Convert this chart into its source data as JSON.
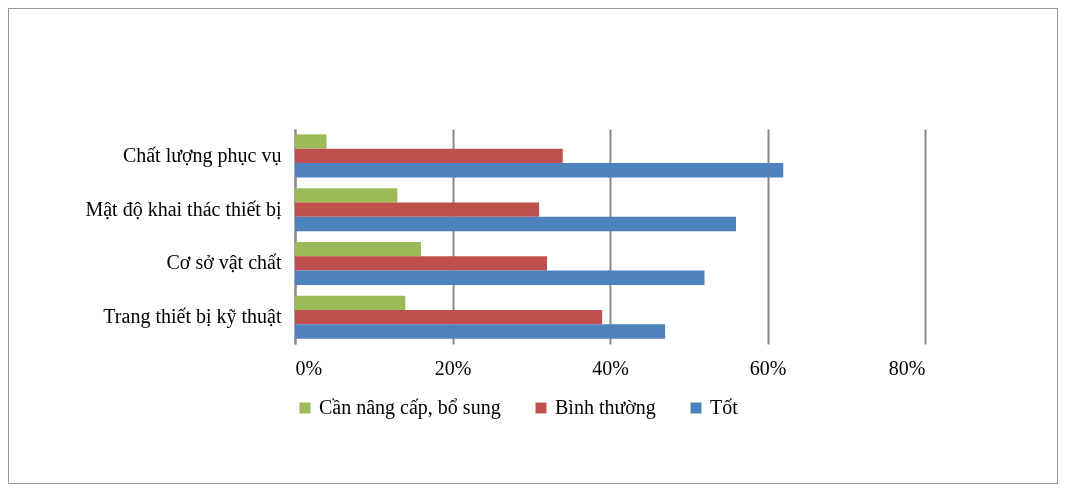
{
  "chart_data": {
    "type": "bar",
    "orientation": "horizontal",
    "categories": [
      "Chất lượng phục vụ",
      "Mật độ khai thác thiết bị",
      "Cơ sở vật chất",
      "Trang thiết bị kỹ thuật"
    ],
    "series": [
      {
        "name": "Cần nâng cấp, bổ sung",
        "color": "#9bbb59",
        "values": [
          4,
          13,
          16,
          14
        ]
      },
      {
        "name": "Bình thường",
        "color": "#c0504d",
        "values": [
          34,
          31,
          32,
          39
        ]
      },
      {
        "name": "Tốt",
        "color": "#4f81bd",
        "values": [
          62,
          56,
          52,
          47
        ]
      }
    ],
    "xlim": [
      0,
      80
    ],
    "xticks": [
      {
        "value": 0,
        "label": "0%"
      },
      {
        "value": 20,
        "label": "20%"
      },
      {
        "value": 40,
        "label": "40%"
      },
      {
        "value": 60,
        "label": "60%"
      },
      {
        "value": 80,
        "label": "80%"
      }
    ],
    "grid": "x",
    "legend": "bottom"
  }
}
